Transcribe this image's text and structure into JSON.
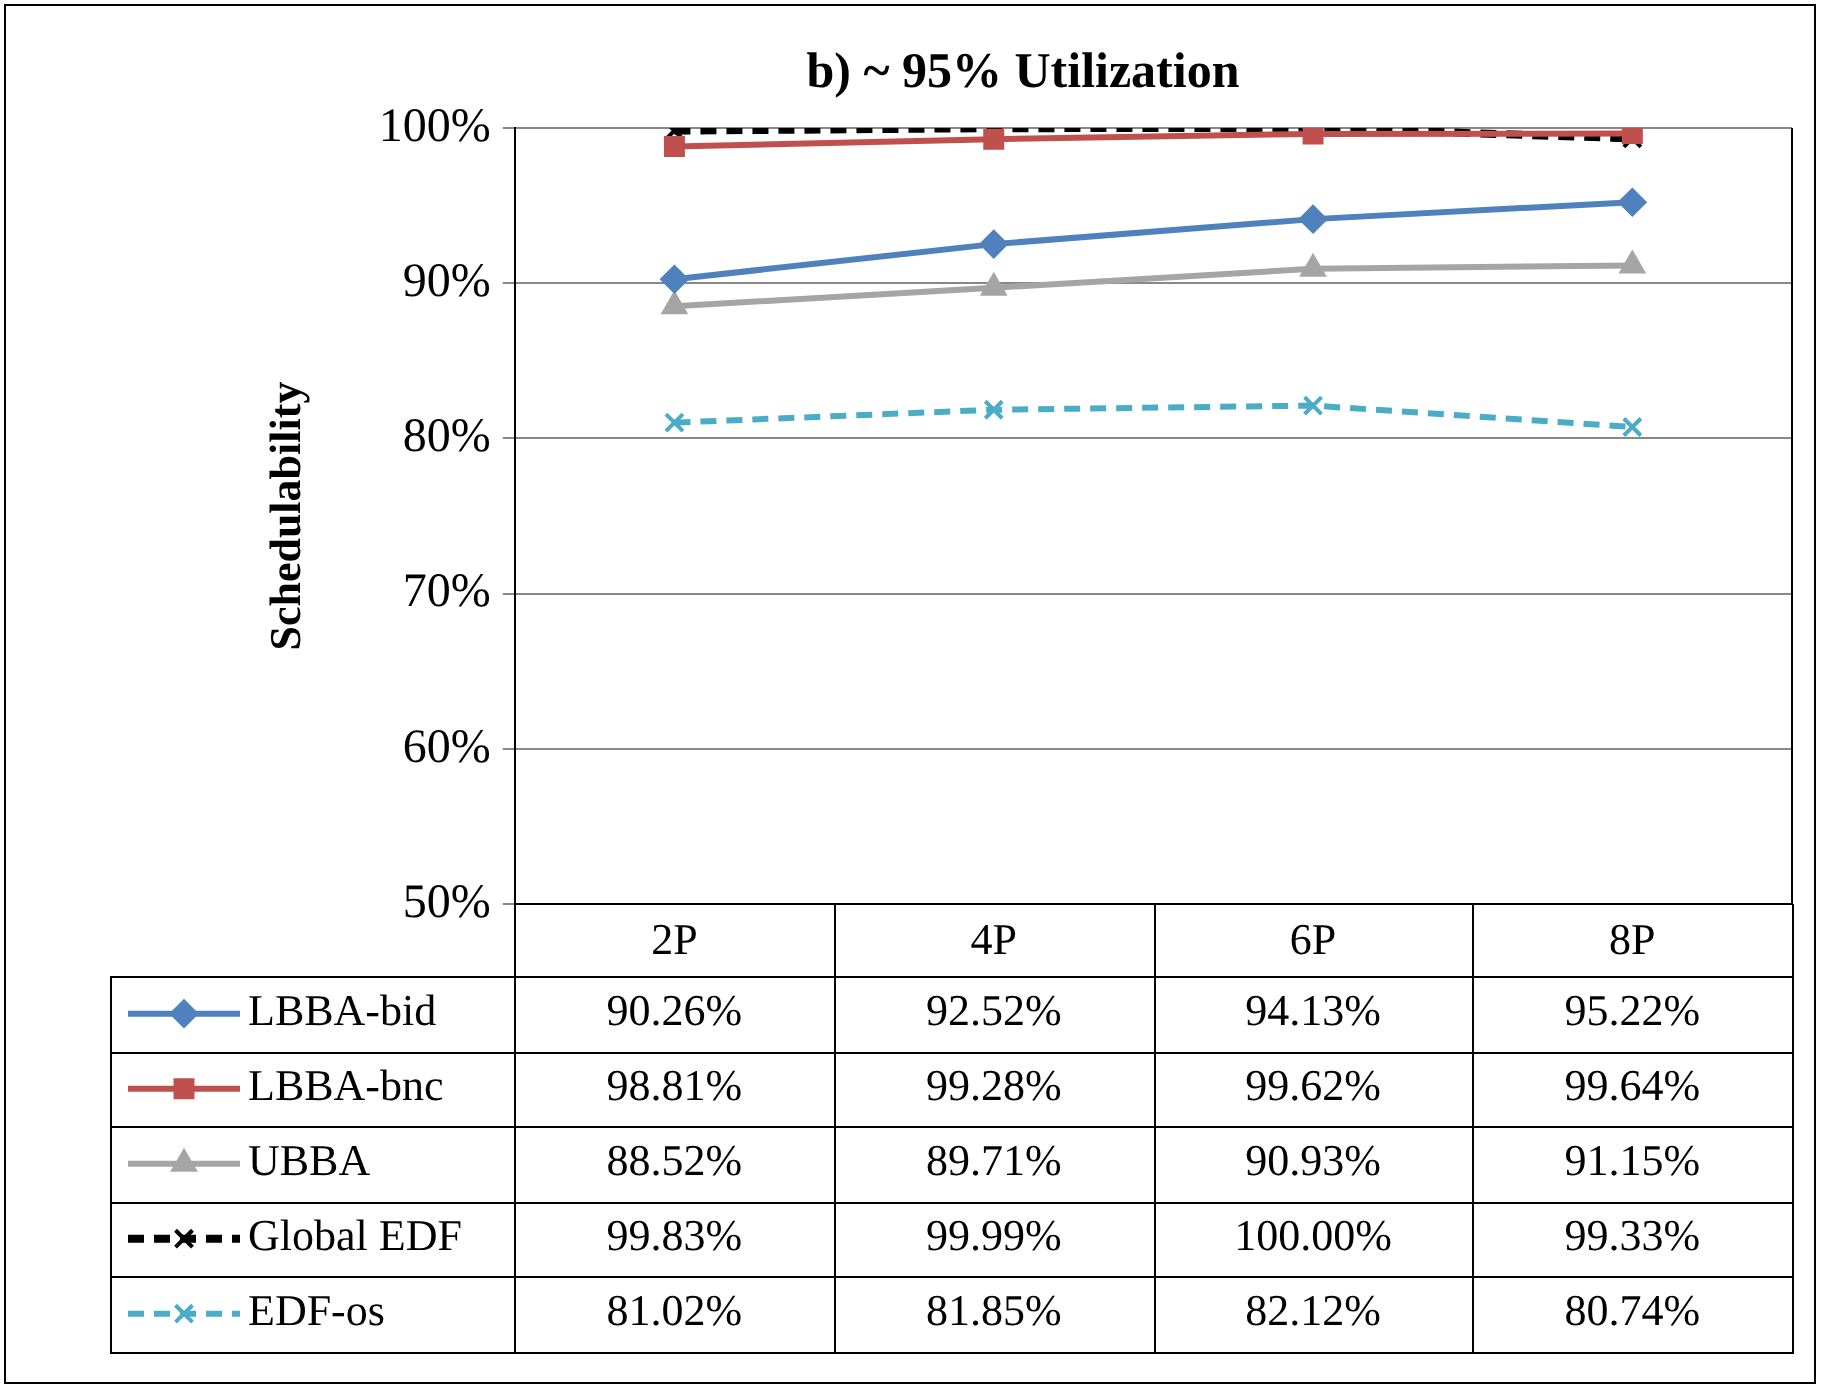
{
  "chart_data": {
    "type": "line",
    "title": "b) ~ 95% Utilization",
    "ylabel": "Schedulability",
    "categories": [
      "2P",
      "4P",
      "6P",
      "8P"
    ],
    "ylim": [
      50,
      100
    ],
    "yticks": [
      {
        "value": 50,
        "label": "50%"
      },
      {
        "value": 60,
        "label": "60%"
      },
      {
        "value": 70,
        "label": "70%"
      },
      {
        "value": 80,
        "label": "80%"
      },
      {
        "value": 90,
        "label": "90%"
      },
      {
        "value": 100,
        "label": "100%"
      }
    ],
    "grid": "y",
    "legend": "bottom",
    "series": [
      {
        "name": "LBBA-bid",
        "color": "#4f81bd",
        "marker": "diamond",
        "line_style": "solid",
        "values": [
          90.26,
          92.52,
          94.13,
          95.22
        ],
        "value_labels": [
          "90.26%",
          "92.52%",
          "94.13%",
          "95.22%"
        ]
      },
      {
        "name": "LBBA-bnc",
        "color": "#c0504d",
        "marker": "square",
        "line_style": "solid",
        "values": [
          98.81,
          99.28,
          99.62,
          99.64
        ],
        "value_labels": [
          "98.81%",
          "99.28%",
          "99.62%",
          "99.64%"
        ]
      },
      {
        "name": "UBBA",
        "color": "#a5a5a5",
        "marker": "triangle",
        "line_style": "solid",
        "values": [
          88.52,
          89.71,
          90.93,
          91.15
        ],
        "value_labels": [
          "88.52%",
          "89.71%",
          "90.93%",
          "91.15%"
        ]
      },
      {
        "name": "Global EDF",
        "color": "#000000",
        "marker": "cross",
        "line_style": "dashed",
        "values": [
          99.83,
          99.99,
          100,
          99.33
        ],
        "value_labels": [
          "99.83%",
          "99.99%",
          "100.00%",
          "99.33%"
        ]
      },
      {
        "name": "EDF-os",
        "color": "#4bacc6",
        "marker": "cross",
        "line_style": "dashed",
        "values": [
          81.02,
          81.85,
          82.12,
          80.74
        ],
        "value_labels": [
          "81.02%",
          "81.85%",
          "82.12%",
          "80.74%"
        ]
      }
    ]
  }
}
